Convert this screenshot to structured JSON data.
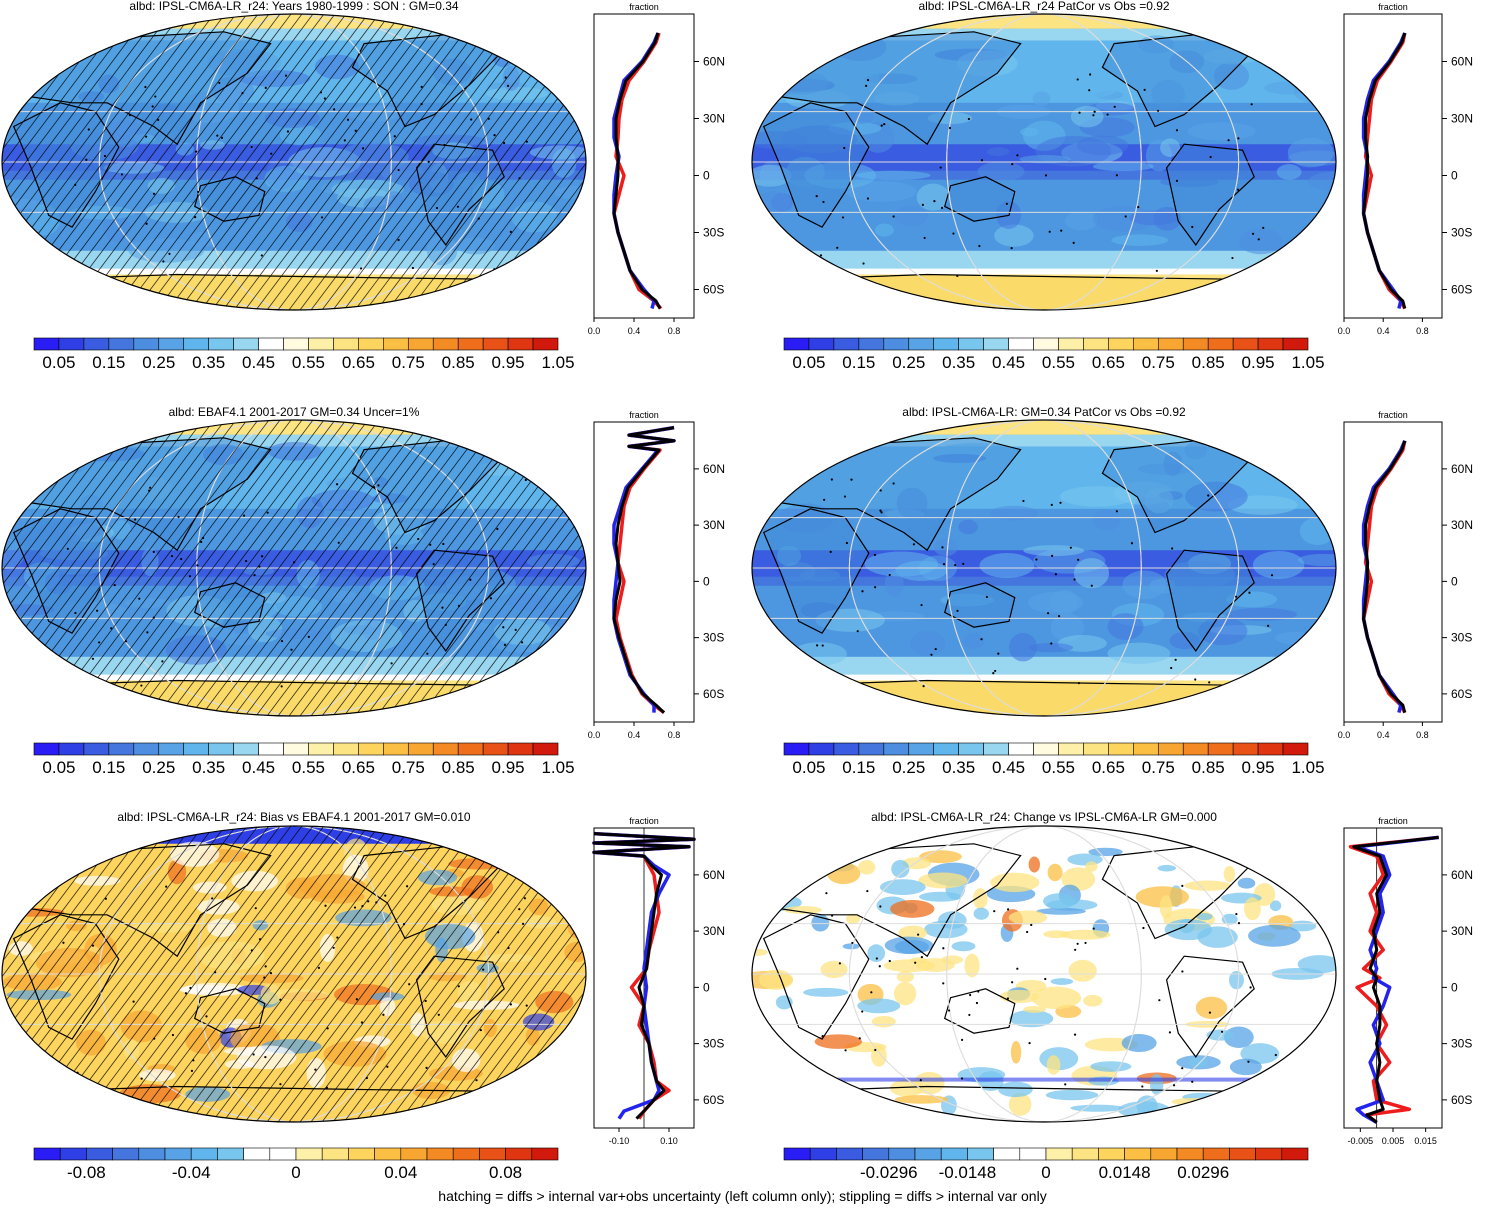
{
  "colors": {
    "seq": [
      "#2a1cf5",
      "#2f3fe6",
      "#3a5ce0",
      "#4476de",
      "#4e8ee0",
      "#57a3e6",
      "#60b6ec",
      "#78c6ee",
      "#99d6f0",
      "#ffffff",
      "#fffbe0",
      "#fdf0a8",
      "#fde482",
      "#fcd45e",
      "#fbbf44",
      "#f8a632",
      "#f48a24",
      "#ef6e1c",
      "#e95216",
      "#e03511",
      "#d21a0c",
      "#c0090a"
    ],
    "div": [
      "#2a1cf5",
      "#2f3fe6",
      "#3a5ce0",
      "#4476de",
      "#4e8ee0",
      "#57a3e6",
      "#60b6ec",
      "#78c6ee",
      "#ffffff",
      "#ffffff",
      "#fdf0a8",
      "#fde482",
      "#fcd45e",
      "#fbbf44",
      "#f8a632",
      "#f48a24",
      "#ef6e1c",
      "#e95216",
      "#e03511",
      "#d21a0c"
    ],
    "ocean": "#4d97e0",
    "land": "#3f8ad8",
    "ice": "#f7d150",
    "line_red": "#ee1c1c",
    "line_blue": "#2323ee",
    "line_black": "#000000"
  },
  "footnote": "hatching = diffs > internal var+obs uncertainty (left column only); stippling = diffs > internal var only",
  "chart_data": [
    {
      "type": "heatmap",
      "title": "albd: IPSL-CM6A-LR_r24: Years 1980-1999 : SON : GM=0.34",
      "colorbar_ticks": [
        "0.05",
        "0.15",
        "0.25",
        "0.35",
        "0.45",
        "0.55",
        "0.65",
        "0.75",
        "0.85",
        "0.95",
        "1.05"
      ],
      "colorbar_ticks_at": [
        1,
        3,
        5,
        7,
        9,
        11,
        13,
        15,
        17,
        19,
        21
      ],
      "colorbar_n": 21,
      "palette": "seq",
      "hatched": true,
      "field": "albedo",
      "profile": {
        "label": "fraction",
        "xticks": [
          "0.0",
          "0.4",
          "0.8"
        ],
        "xlim": [
          0,
          1
        ],
        "lat_ticks": [
          "60N",
          "30N",
          "0",
          "30S",
          "60S"
        ],
        "lat": [
          75,
          70,
          60,
          50,
          40,
          30,
          20,
          10,
          0,
          -10,
          -20,
          -30,
          -40,
          -50,
          -60,
          -66,
          -70
        ],
        "series": [
          {
            "color": "red",
            "values": [
              0.65,
              0.62,
              0.5,
              0.35,
              0.28,
              0.25,
              0.24,
              0.22,
              0.3,
              0.25,
              0.2,
              0.24,
              0.3,
              0.36,
              0.45,
              0.6,
              0.67
            ]
          },
          {
            "color": "blue",
            "values": [
              0.64,
              0.6,
              0.48,
              0.3,
              0.25,
              0.2,
              0.2,
              0.25,
              0.22,
              0.2,
              0.2,
              0.24,
              0.3,
              0.36,
              0.5,
              0.6,
              0.58
            ]
          },
          {
            "color": "black",
            "values": [
              0.64,
              0.61,
              0.49,
              0.32,
              0.26,
              0.22,
              0.22,
              0.24,
              0.24,
              0.22,
              0.2,
              0.24,
              0.3,
              0.36,
              0.48,
              0.62,
              0.66
            ]
          }
        ]
      }
    },
    {
      "type": "heatmap",
      "title": "albd: IPSL-CM6A-LR_r24 PatCor vs Obs =0.92",
      "colorbar_ticks": [
        "0.05",
        "0.15",
        "0.25",
        "0.35",
        "0.45",
        "0.55",
        "0.65",
        "0.75",
        "0.85",
        "0.95",
        "1.05"
      ],
      "colorbar_ticks_at": [
        1,
        3,
        5,
        7,
        9,
        11,
        13,
        15,
        17,
        19,
        21
      ],
      "colorbar_n": 21,
      "palette": "seq",
      "hatched": false,
      "field": "albedo",
      "profile": {
        "label": "fraction",
        "xticks": [
          "0.0",
          "0.4",
          "0.8"
        ],
        "xlim": [
          0,
          1
        ],
        "lat_ticks": [
          "60N",
          "30N",
          "0",
          "30S",
          "60S"
        ],
        "lat": [
          75,
          70,
          60,
          50,
          40,
          30,
          20,
          10,
          0,
          -10,
          -20,
          -30,
          -40,
          -50,
          -60,
          -66,
          -70
        ],
        "series": [
          {
            "color": "red",
            "values": [
              0.62,
              0.6,
              0.48,
              0.34,
              0.28,
              0.26,
              0.24,
              0.22,
              0.28,
              0.24,
              0.2,
              0.24,
              0.3,
              0.36,
              0.46,
              0.58,
              0.62
            ]
          },
          {
            "color": "blue",
            "values": [
              0.62,
              0.58,
              0.46,
              0.3,
              0.24,
              0.2,
              0.2,
              0.24,
              0.22,
              0.2,
              0.2,
              0.24,
              0.3,
              0.36,
              0.5,
              0.58,
              0.56
            ]
          },
          {
            "color": "black",
            "values": [
              0.62,
              0.59,
              0.47,
              0.32,
              0.26,
              0.22,
              0.22,
              0.24,
              0.24,
              0.22,
              0.2,
              0.24,
              0.3,
              0.36,
              0.48,
              0.6,
              0.62
            ]
          }
        ]
      }
    },
    {
      "type": "heatmap",
      "title": "albd: EBAF4.1 2001-2017 GM=0.34 Uncer=1%",
      "colorbar_ticks": [
        "0.05",
        "0.15",
        "0.25",
        "0.35",
        "0.45",
        "0.55",
        "0.65",
        "0.75",
        "0.85",
        "0.95",
        "1.05"
      ],
      "colorbar_ticks_at": [
        1,
        3,
        5,
        7,
        9,
        11,
        13,
        15,
        17,
        19,
        21
      ],
      "colorbar_n": 21,
      "palette": "seq",
      "hatched": true,
      "field": "albedo_obs",
      "profile": {
        "label": "fraction",
        "xticks": [
          "0.0",
          "0.4",
          "0.8"
        ],
        "xlim": [
          0,
          1
        ],
        "lat_ticks": [
          "60N",
          "30N",
          "0",
          "30S",
          "60S"
        ],
        "lat": [
          82,
          78,
          75,
          72,
          70,
          60,
          50,
          40,
          30,
          20,
          10,
          0,
          -10,
          -20,
          -30,
          -40,
          -50,
          -60,
          -66,
          -70
        ],
        "series": [
          {
            "color": "red",
            "values": [
              0.8,
              0.35,
              0.8,
              0.35,
              0.66,
              0.5,
              0.36,
              0.3,
              0.28,
              0.26,
              0.24,
              0.3,
              0.26,
              0.22,
              0.26,
              0.32,
              0.38,
              0.48,
              0.6,
              0.7
            ]
          },
          {
            "color": "blue",
            "values": [
              0.8,
              0.35,
              0.8,
              0.35,
              0.64,
              0.48,
              0.32,
              0.26,
              0.2,
              0.2,
              0.24,
              0.22,
              0.2,
              0.2,
              0.24,
              0.3,
              0.36,
              0.5,
              0.6,
              0.6
            ]
          },
          {
            "color": "black",
            "values": [
              0.8,
              0.35,
              0.8,
              0.35,
              0.65,
              0.49,
              0.34,
              0.28,
              0.24,
              0.22,
              0.24,
              0.26,
              0.22,
              0.2,
              0.25,
              0.31,
              0.37,
              0.49,
              0.62,
              0.7
            ]
          }
        ]
      }
    },
    {
      "type": "heatmap",
      "title": "albd: IPSL-CM6A-LR: GM=0.34 PatCor vs Obs =0.92",
      "colorbar_ticks": [
        "0.05",
        "0.15",
        "0.25",
        "0.35",
        "0.45",
        "0.55",
        "0.65",
        "0.75",
        "0.85",
        "0.95",
        "1.05"
      ],
      "colorbar_ticks_at": [
        1,
        3,
        5,
        7,
        9,
        11,
        13,
        15,
        17,
        19,
        21
      ],
      "colorbar_n": 21,
      "palette": "seq",
      "hatched": false,
      "field": "albedo",
      "profile": {
        "label": "fraction",
        "xticks": [
          "0.0",
          "0.4",
          "0.8"
        ],
        "xlim": [
          0,
          1
        ],
        "lat_ticks": [
          "60N",
          "30N",
          "0",
          "30S",
          "60S"
        ],
        "lat": [
          75,
          70,
          60,
          50,
          40,
          30,
          20,
          10,
          0,
          -10,
          -20,
          -30,
          -40,
          -50,
          -60,
          -66,
          -70
        ],
        "series": [
          {
            "color": "red",
            "values": [
              0.62,
              0.6,
              0.48,
              0.34,
              0.28,
              0.26,
              0.24,
              0.22,
              0.28,
              0.24,
              0.2,
              0.24,
              0.3,
              0.36,
              0.46,
              0.58,
              0.62
            ]
          },
          {
            "color": "blue",
            "values": [
              0.62,
              0.58,
              0.46,
              0.3,
              0.24,
              0.2,
              0.2,
              0.24,
              0.22,
              0.2,
              0.2,
              0.24,
              0.3,
              0.36,
              0.5,
              0.58,
              0.56
            ]
          },
          {
            "color": "black",
            "values": [
              0.62,
              0.59,
              0.47,
              0.32,
              0.26,
              0.22,
              0.22,
              0.24,
              0.24,
              0.22,
              0.2,
              0.24,
              0.3,
              0.36,
              0.48,
              0.6,
              0.62
            ]
          }
        ]
      }
    },
    {
      "type": "heatmap",
      "title": "albd: IPSL-CM6A-LR_r24: Bias vs EBAF4.1 2001-2017  GM=0.010",
      "colorbar_ticks": [
        "-0.08",
        "-0.04",
        "0",
        "0.04",
        "0.08"
      ],
      "colorbar_ticks_at": [
        2,
        6,
        10,
        14,
        18
      ],
      "colorbar_n": 20,
      "palette": "div",
      "hatched": true,
      "field": "bias",
      "profile": {
        "label": "fraction",
        "xticks": [
          "-0.10",
          "0.10"
        ],
        "xlim": [
          -0.2,
          0.2
        ],
        "lat_ticks": [
          "60N",
          "30N",
          "0",
          "30S",
          "60S"
        ],
        "lat": [
          82,
          79,
          77,
          75,
          72,
          70,
          65,
          60,
          50,
          40,
          30,
          20,
          10,
          0,
          -10,
          -20,
          -30,
          -40,
          -50,
          -55,
          -60,
          -66,
          -70
        ],
        "series": [
          {
            "color": "red",
            "values": [
              -0.2,
              0.2,
              -0.2,
              0.18,
              -0.2,
              0.0,
              0.02,
              0.04,
              0.05,
              0.06,
              0.04,
              0.02,
              0.01,
              -0.05,
              0.0,
              -0.02,
              0.02,
              0.04,
              0.05,
              0.1,
              0.04,
              0.0,
              -0.02
            ]
          },
          {
            "color": "blue",
            "values": [
              -0.2,
              0.2,
              -0.2,
              0.18,
              -0.2,
              0.0,
              0.04,
              0.1,
              0.06,
              0.03,
              0.02,
              0.01,
              0.0,
              0.01,
              0.0,
              0.01,
              0.02,
              0.03,
              0.05,
              0.06,
              0.04,
              -0.08,
              -0.1
            ]
          },
          {
            "color": "black",
            "values": [
              -0.2,
              0.2,
              -0.2,
              0.18,
              -0.2,
              0.0,
              0.03,
              0.07,
              0.05,
              0.04,
              0.03,
              0.02,
              0.01,
              -0.02,
              0.0,
              -0.01,
              0.02,
              0.03,
              0.05,
              0.08,
              0.04,
              0.0,
              -0.03
            ]
          }
        ]
      }
    },
    {
      "type": "heatmap",
      "title": "albd: IPSL-CM6A-LR_r24: Change vs IPSL-CM6A-LR GM=0.000",
      "colorbar_ticks": [
        "-0.0296",
        "-0.0148",
        "0",
        "0.0148",
        "0.0296"
      ],
      "colorbar_ticks_at": [
        4,
        7,
        10,
        13,
        16
      ],
      "colorbar_n": 20,
      "palette": "div",
      "hatched": false,
      "field": "change",
      "profile": {
        "label": "fraction",
        "xticks": [
          "-0.005",
          "0.005",
          "0.015"
        ],
        "xlim": [
          -0.01,
          0.02
        ],
        "lat_ticks": [
          "60N",
          "30N",
          "0",
          "30S",
          "60S"
        ],
        "lat": [
          80,
          75,
          70,
          60,
          50,
          40,
          30,
          20,
          10,
          5,
          0,
          -10,
          -20,
          -30,
          -40,
          -50,
          -60,
          -65,
          -68,
          -72
        ],
        "series": [
          {
            "color": "red",
            "values": [
              0.019,
              -0.008,
              0.0,
              0.002,
              -0.002,
              0.0,
              -0.002,
              0.002,
              -0.004,
              0.001,
              -0.006,
              0.0,
              0.003,
              0.0,
              0.004,
              -0.001,
              0.0,
              0.01,
              -0.003,
              0.0
            ]
          },
          {
            "color": "blue",
            "values": [
              0.019,
              -0.006,
              0.002,
              0.004,
              0.001,
              0.002,
              0.0,
              -0.002,
              0.0,
              -0.001,
              0.004,
              0.002,
              -0.001,
              0.001,
              -0.002,
              0.0,
              0.002,
              -0.006,
              -0.004,
              0.0
            ]
          },
          {
            "color": "black",
            "values": [
              0.019,
              -0.007,
              0.001,
              0.003,
              0.0,
              0.001,
              -0.001,
              0.0,
              -0.002,
              0.0,
              -0.001,
              0.001,
              0.001,
              0.0,
              0.001,
              0.0,
              0.001,
              0.002,
              -0.003,
              0.0
            ]
          }
        ]
      }
    }
  ]
}
